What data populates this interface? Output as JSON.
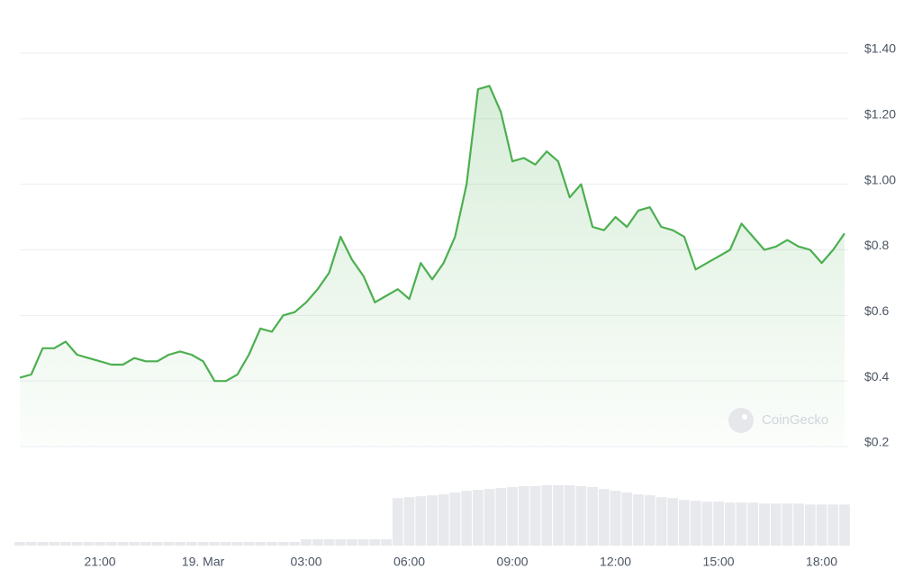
{
  "chart_data": {
    "type": "line",
    "watermark": "CoinGecko",
    "categories": [
      null,
      null,
      null,
      null,
      null,
      null,
      null,
      "21:00",
      null,
      null,
      null,
      null,
      null,
      null,
      null,
      null,
      "19. Mar",
      null,
      null,
      null,
      null,
      null,
      null,
      null,
      null,
      "03:00",
      null,
      null,
      null,
      null,
      null,
      null,
      null,
      null,
      "06:00",
      null,
      null,
      null,
      null,
      null,
      null,
      null,
      null,
      "09:00",
      null,
      null,
      null,
      null,
      null,
      null,
      null,
      null,
      "12:00",
      null,
      null,
      null,
      null,
      null,
      null,
      null,
      null,
      "15:00",
      null,
      null,
      null,
      null,
      null,
      null,
      null,
      null,
      "18:00",
      null,
      null
    ],
    "values": [
      0.41,
      0.42,
      0.5,
      0.5,
      0.52,
      0.48,
      0.47,
      0.46,
      0.45,
      0.45,
      0.47,
      0.46,
      0.46,
      0.48,
      0.49,
      0.48,
      0.46,
      0.4,
      0.4,
      0.42,
      0.48,
      0.56,
      0.55,
      0.6,
      0.61,
      0.64,
      0.68,
      0.73,
      0.84,
      0.77,
      0.72,
      0.64,
      0.66,
      0.68,
      0.65,
      0.76,
      0.71,
      0.76,
      0.84,
      1.0,
      1.29,
      1.3,
      1.22,
      1.07,
      1.08,
      1.06,
      1.1,
      1.07,
      0.96,
      1.0,
      0.87,
      0.86,
      0.9,
      0.87,
      0.92,
      0.93,
      0.87,
      0.86,
      0.84,
      0.74,
      0.76,
      0.78,
      0.8,
      0.88,
      0.84,
      0.8,
      0.81,
      0.83,
      0.81,
      0.8,
      0.76,
      0.8,
      0.85
    ],
    "volume": [
      4,
      4,
      4,
      4,
      4,
      4,
      4,
      4,
      4,
      4,
      4,
      4,
      4,
      4,
      4,
      4,
      4,
      4,
      4,
      4,
      4,
      4,
      4,
      4,
      4,
      7,
      7,
      7,
      7,
      7,
      7,
      7,
      7,
      52,
      53,
      54,
      55,
      56,
      58,
      60,
      61,
      62,
      63,
      64,
      65,
      65,
      66,
      66,
      66,
      65,
      64,
      62,
      60,
      58,
      56,
      55,
      53,
      52,
      50,
      49,
      48,
      48,
      47,
      47,
      47,
      46,
      46,
      46,
      46,
      45,
      45,
      45,
      45
    ],
    "color": "#4caf50",
    "volume_color": "#e8e9ec",
    "ylim": [
      0.2,
      1.4
    ],
    "yticks": [
      {
        "value": 0.2,
        "label": "$0.2"
      },
      {
        "value": 0.4,
        "label": "$0.4"
      },
      {
        "value": 0.6,
        "label": "$0.6"
      },
      {
        "value": 0.8,
        "label": "$0.8"
      },
      {
        "value": 1.0,
        "label": "$1.00"
      },
      {
        "value": 1.2,
        "label": "$1.20"
      },
      {
        "value": 1.4,
        "label": "$1.40"
      }
    ],
    "grid": true
  }
}
